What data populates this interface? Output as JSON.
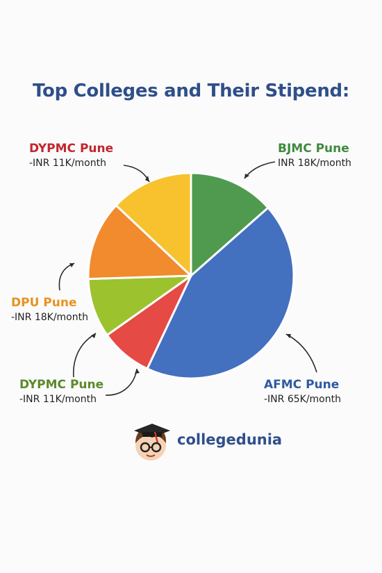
{
  "title": "Top Colleges and Their Stipend:",
  "chart_data": {
    "type": "pie",
    "title": "Top Colleges and Their Stipend:",
    "slices": [
      {
        "label": "BJMC Pune",
        "note": "INR 18K/month",
        "value": 13.5,
        "color": "#4f9a4f"
      },
      {
        "label": "AFMC Pune",
        "note": "INR 65K/month",
        "value": 43.5,
        "color": "#4470c0"
      },
      {
        "label": "DYPMC Pune",
        "note": "-INR 11K/month",
        "value": 8.2,
        "color": "#e54a45"
      },
      {
        "label": "",
        "note": "",
        "value": 9.3,
        "color": "#9cc22e"
      },
      {
        "label": "DPU Pune",
        "note": "-INR 18K/month",
        "value": 12.5,
        "color": "#f28a2e"
      },
      {
        "label": "DYPMC Pune",
        "note": "-INR 11K/month",
        "value": 13.0,
        "color": "#f7c22d"
      }
    ]
  },
  "callouts": [
    {
      "name": "DYPMC Pune",
      "value": "-INR 11K/month",
      "color": "#c1272d"
    },
    {
      "name": "BJMC Pune",
      "value": "INR 18K/month",
      "color": "#3f8a3f"
    },
    {
      "name": "DPU Pune",
      "value": "-INR 18K/month",
      "color": "#e8921f"
    },
    {
      "name": "DYPMC Pune",
      "value": "-INR 11K/month",
      "color": "#5a8a2a"
    },
    {
      "name": "AFMC Pune",
      "value": "-INR 65K/month",
      "color": "#2f5aa0"
    }
  ],
  "brand": {
    "name": "collegedunia"
  }
}
